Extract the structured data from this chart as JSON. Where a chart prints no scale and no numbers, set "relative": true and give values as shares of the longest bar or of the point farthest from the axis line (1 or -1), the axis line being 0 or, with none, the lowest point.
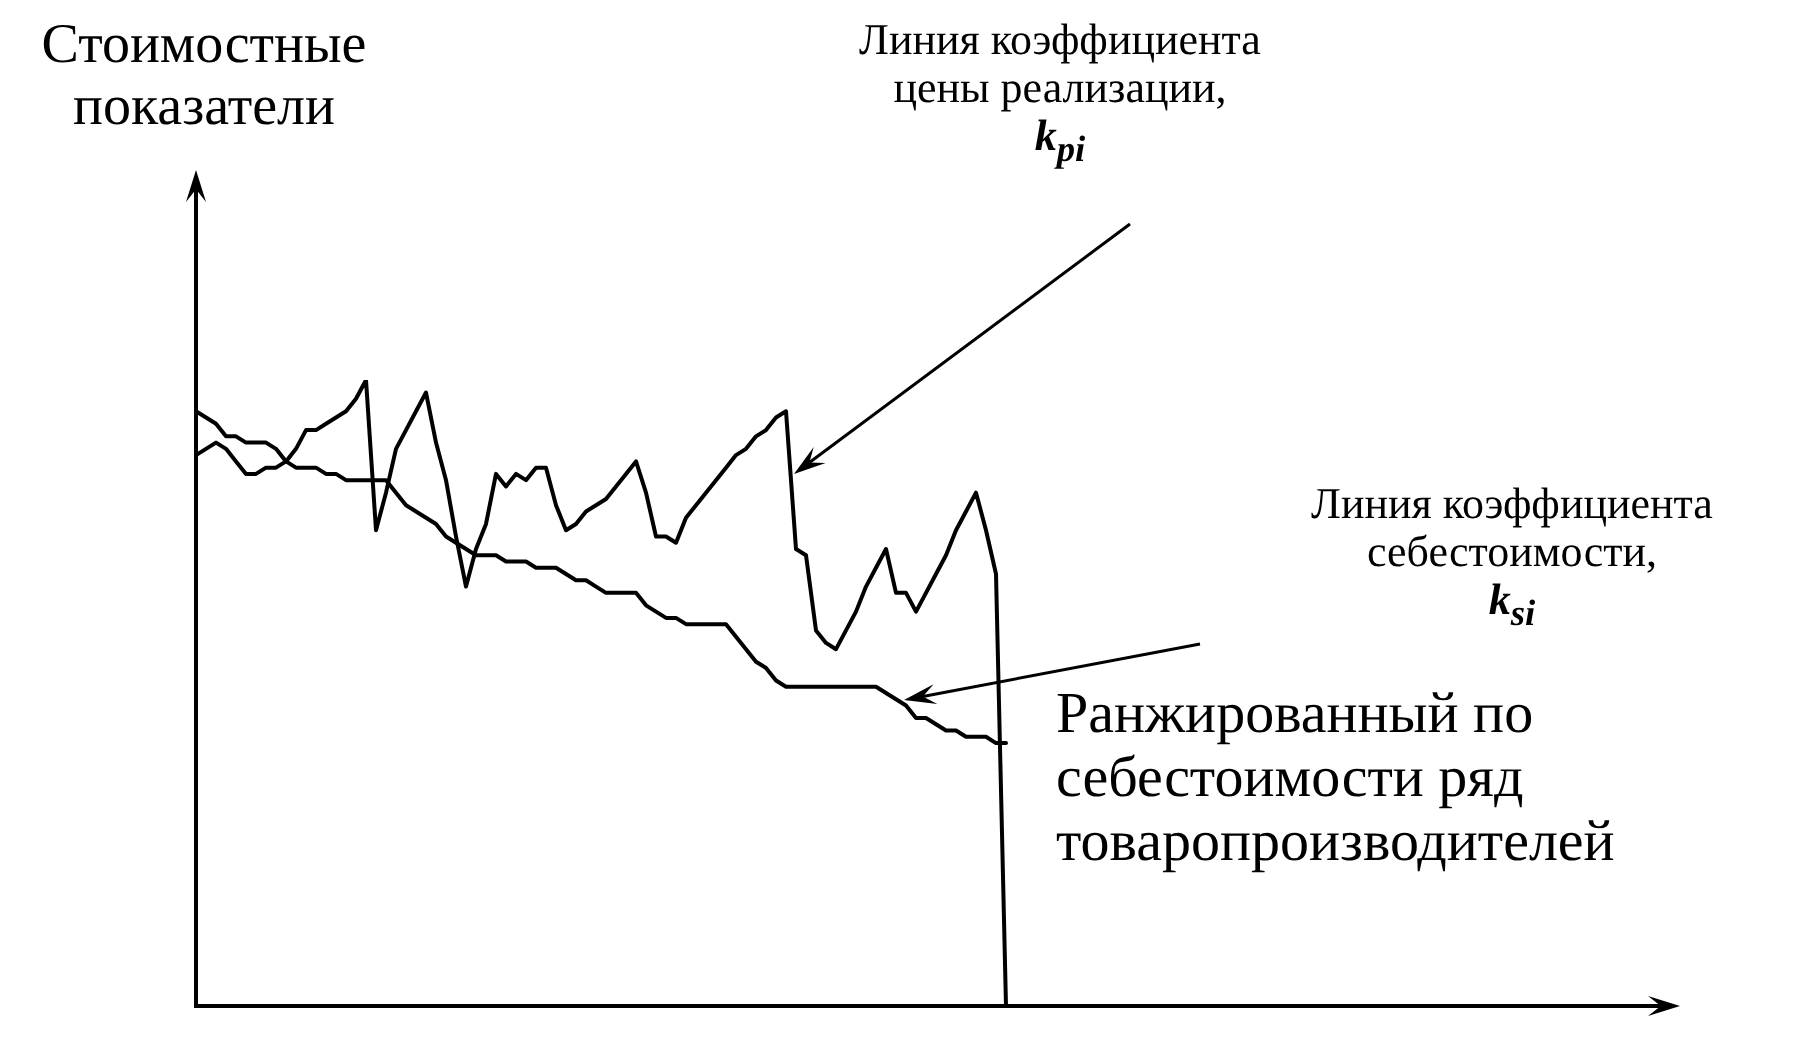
{
  "chart_data": {
    "type": "line",
    "relative": true,
    "ylabel": "Стоимостные показатели",
    "xlabel": "Ранжированный по себестоимости ряд товаропроизводителей",
    "tick_labels": false,
    "legend": false,
    "marker": "none",
    "line_style": "solid",
    "annotations": [
      "Линия коэффициента цены реализации, k$_{pi}$",
      "Линия коэффициента себестоимости, k$_{si}$"
    ],
    "categories": [
      null,
      null,
      null,
      null,
      null,
      null,
      null,
      null,
      null,
      null,
      null,
      null,
      null,
      null,
      null,
      null,
      null,
      null,
      null,
      null,
      null,
      null,
      null,
      null,
      null,
      null,
      null,
      null,
      null,
      null,
      null,
      null,
      null,
      null,
      null,
      null,
      null,
      null,
      null,
      null,
      null,
      null,
      null,
      null,
      null,
      null,
      null,
      null,
      null,
      null,
      null,
      null,
      null,
      null,
      null,
      null,
      null,
      null,
      null,
      null,
      null,
      null,
      null,
      null,
      null,
      null,
      null,
      null,
      null,
      null,
      null,
      null,
      null,
      null,
      null,
      null,
      null,
      null,
      null,
      null,
      null,
      null
    ],
    "series": [
      {
        "color": "#000000",
        "values": [
          0.88,
          0.89,
          0.9,
          0.89,
          0.87,
          0.85,
          0.85,
          0.86,
          0.86,
          0.87,
          0.89,
          0.92,
          0.92,
          0.93,
          0.94,
          0.95,
          0.97,
          1,
          0.76,
          0.82,
          0.89,
          0.92,
          0.95,
          0.98,
          0.9,
          0.84,
          0.75,
          0.67,
          0.73,
          0.77,
          0.85,
          0.83,
          0.85,
          0.84,
          0.86,
          0.86,
          0.8,
          0.76,
          0.77,
          0.79,
          0.8,
          0.81,
          0.83,
          0.85,
          0.87,
          0.82,
          0.75,
          0.75,
          0.74,
          0.78,
          0.8,
          0.82,
          0.84,
          0.86,
          0.88,
          0.89,
          0.91,
          0.92,
          0.94,
          0.95,
          0.73,
          0.72,
          0.6,
          0.58,
          0.57,
          0.6,
          0.63,
          0.67,
          0.7,
          0.73,
          0.66,
          0.66,
          0.63,
          0.66,
          0.69,
          0.72,
          0.76,
          0.79,
          0.82,
          0.76,
          0.69,
          0
        ]
      },
      {
        "color": "#000000",
        "values": [
          0.95,
          0.94,
          0.93,
          0.91,
          0.91,
          0.9,
          0.9,
          0.9,
          0.89,
          0.87,
          0.86,
          0.86,
          0.86,
          0.85,
          0.85,
          0.84,
          0.84,
          0.84,
          0.84,
          0.84,
          0.82,
          0.8,
          0.79,
          0.78,
          0.77,
          0.75,
          0.74,
          0.73,
          0.72,
          0.72,
          0.72,
          0.71,
          0.71,
          0.71,
          0.7,
          0.7,
          0.7,
          0.69,
          0.68,
          0.68,
          0.67,
          0.66,
          0.66,
          0.66,
          0.66,
          0.64,
          0.63,
          0.62,
          0.62,
          0.61,
          0.61,
          0.61,
          0.61,
          0.61,
          0.59,
          0.57,
          0.55,
          0.54,
          0.52,
          0.51,
          0.51,
          0.51,
          0.51,
          0.51,
          0.51,
          0.51,
          0.51,
          0.51,
          0.51,
          0.5,
          0.49,
          0.48,
          0.46,
          0.46,
          0.45,
          0.44,
          0.44,
          0.43,
          0.43,
          0.43,
          0.42,
          0.42
        ]
      }
    ]
  }
}
